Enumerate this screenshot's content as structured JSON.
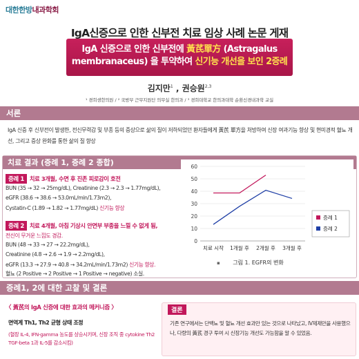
{
  "header": {
    "org_prefix": "대한한방",
    "org_suffix": "내과학회",
    "main_title": "IgA신증으로 인한 신부전 치료 임상 사례 논문 게재",
    "banner_line1_a": "IgA 신증으로 인한 신부전에 ",
    "banner_line1_b": "黃芪單方",
    "banner_line1_c": " (Astragalus",
    "banner_line2_a": "membranaceus) 을 투약하여 ",
    "banner_line2_b": "신기능 개선을 보인 2증례",
    "author1": "김지만",
    "author1_sup": "1",
    "author_sep": " , ",
    "author2": "권승원",
    "author2_sup": "2,3",
    "affiliation": "¹ 경희생한의원 / ² 국방부 근무지원단 의무실 한의과 / ³ 경희대학교 한의과대학 순환신경내과학 교실"
  },
  "intro": {
    "heading": "서론",
    "text": "IgA 신증 후 신부전이 발생한, 전신무력감 및 부종 등의 증상으로 삶의 질이 저하되었던 환자들에게 黃芪 單方을 처방하여 신장 여과기능 향상 및 현미경적 혈뇨 개선, 그리고 증상 완화를 통한 삶의 질 향상"
  },
  "results": {
    "heading": "치료 결과 (증례 1, 증례 2 종합)",
    "case1": {
      "tag": "증례 1",
      "summary": "치료 3개월, 수면 후 진존 피로감이 호전",
      "bun": "BUN (35 → 32 → 25mg/dL), Creatinine (2.3 → 2.3 → 1.77mg/dL),",
      "egfr": "eGFR (38.6 → 38.6 → 53.0mL/min/1.73m2),",
      "cystatin_a": "Cystatin-C (1.89 → 1.82 → 1.77mg/dL) ",
      "cystatin_b": "신기능 향상"
    },
    "case2": {
      "tag": "증례 2",
      "summary": "치료 4개월, 아침 기상시 안면부 부종을 느낄 수 없게 됨,",
      "summary2": "전신이 무거운 느낌도 경감.",
      "bun": "BUN (48 → 33 → 27 → 22.2mg/dL),",
      "creatinine": "Creatinine (4.8 → 2.6 → 1.9 → 2.2mg/dL),",
      "egfr_a": "eGFR (13.3 → 27.9 → 40.8 → 34.2mL/min/1.73m2) ",
      "egfr_b": "신기능 향상.",
      "hematuria": "혈뇨 (2 Positive → 2 Positive → 1 Positive → negative) 소실."
    }
  },
  "chart_data": {
    "type": "line",
    "categories": [
      "치료 시작",
      "1개월 후",
      "2개월 후",
      "3개월 후"
    ],
    "series": [
      {
        "name": "증례 1",
        "values": [
          38.6,
          38.6,
          53.0,
          null
        ],
        "color": "#c2185b"
      },
      {
        "name": "증례 2",
        "values": [
          13.3,
          27.9,
          40.8,
          34.2
        ],
        "color": "#1f3fa6"
      }
    ],
    "yticks": [
      "0",
      "10",
      "20",
      "30",
      "40",
      "50",
      "60"
    ],
    "ylim": [
      0,
      60
    ],
    "grid": true,
    "legend": "right",
    "caption": "그림 1. EGFR의 변화"
  },
  "discussion": {
    "heading": "증례1, 2에 대한 고찰 및 결론",
    "mech_title": "〈 黃芪의 IgA 신증에 대한 효과의 메커니즘 〉",
    "mech_sub": "면역계 Th1, Th2 균형 상태 조정",
    "mech_text": "(혈장 IL-4, IFN-gamma 농도를 상승시키며, 신장 조직 중 cytokine Th2 TGF-beta 1과 IL-5를 감소시킴)",
    "conclusion_tag": "결론",
    "conclusion_text": "기존 연구에서는 단백뇨 및 혈뇨 개선 효과만 있는 것으로 나타났고, IV제제만을 사용했으나, 다량의 黃芪 경구 투여 시 신장기능 개선도 가능함을 알 수 있었음."
  }
}
